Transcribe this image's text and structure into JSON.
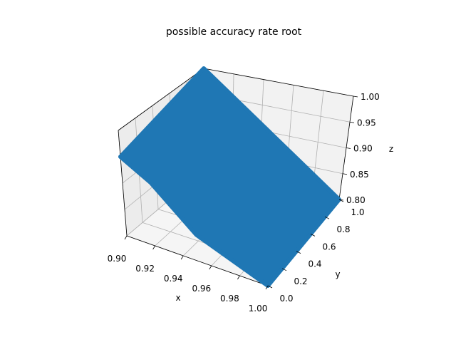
{
  "chart_data": {
    "type": "scatter",
    "projection": "3d",
    "title": "possible accuracy rate root",
    "xlabel": "x",
    "ylabel": "y",
    "zlabel": "z",
    "xlim": [
      0.9,
      1.0
    ],
    "ylim": [
      0.0,
      1.0
    ],
    "zlim": [
      0.8,
      1.0
    ],
    "xticks": [
      "0.90",
      "0.92",
      "0.94",
      "0.96",
      "0.98",
      "1.00"
    ],
    "yticks": [
      "0.0",
      "0.2",
      "0.4",
      "0.6",
      "0.8",
      "1.0"
    ],
    "zticks": [
      "0.80",
      "0.85",
      "0.90",
      "0.95",
      "1.00"
    ],
    "grid": true,
    "series": [
      {
        "color": "#1f77b4",
        "point_cloud_outline": [
          {
            "x": 0.9,
            "y": 0.0,
            "z": 0.95
          },
          {
            "x": 0.9,
            "y": 1.0,
            "z": 1.0
          },
          {
            "x": 1.0,
            "y": 1.0,
            "z": 0.8
          },
          {
            "x": 1.0,
            "y": 0.0,
            "z": 0.8
          },
          {
            "x": 0.95,
            "y": 0.0,
            "z": 0.85
          },
          {
            "x": 0.92,
            "y": 0.0,
            "z": 0.92
          }
        ]
      }
    ]
  }
}
